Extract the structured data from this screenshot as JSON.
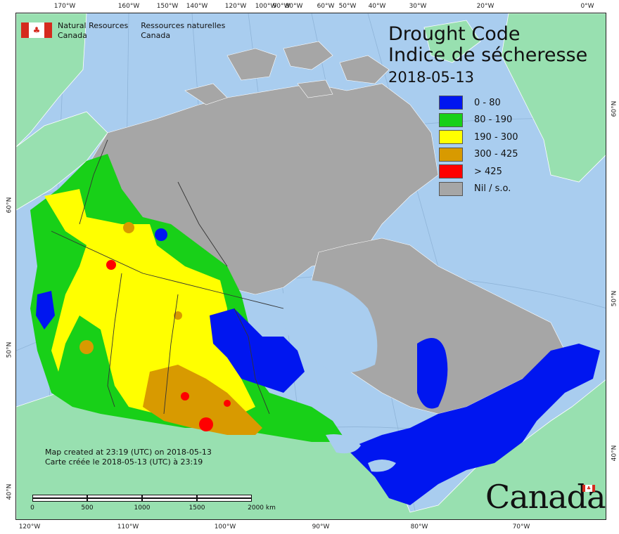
{
  "map": {
    "title_en": "Drought Code",
    "title_fr": "Indice de sécheresse",
    "date": "2018-05-13",
    "legend": [
      {
        "label": "0 - 80",
        "color": "#0016f0"
      },
      {
        "label": "80 - 190",
        "color": "#18d018"
      },
      {
        "label": "190 - 300",
        "color": "#ffff00"
      },
      {
        "label": "300 - 425",
        "color": "#d89a00"
      },
      {
        "label": "> 425",
        "color": "#ff0000"
      },
      {
        "label": "Nil / s.o.",
        "color": "#a6a6a6"
      }
    ],
    "agency_en": [
      "Natural Resources",
      "Canada"
    ],
    "agency_fr": [
      "Ressources naturelles",
      "Canada"
    ],
    "created_en": "Map created at 23:19 (UTC) on 2018-05-13",
    "created_fr": "Carte créée le 2018-05-13 (UTC) à 23:19",
    "wordmark": "Canada",
    "scale_labels": [
      "0",
      "500",
      "1000",
      "1500",
      "2000  km"
    ],
    "top_ticks": [
      "170°W",
      "160°W",
      "150°W",
      "140°W",
      "120°W",
      "100°W",
      "90°W",
      "80°W",
      "60°W",
      "50°W",
      "40°W",
      "30°W",
      "20°W",
      "0°W"
    ],
    "bottom_ticks": [
      "120°W",
      "110°W",
      "100°W",
      "90°W",
      "80°W",
      "70°W"
    ],
    "left_ticks": [
      "60°N",
      "50°N",
      "40°N"
    ],
    "right_ticks": [
      "60°N",
      "50°N",
      "40°N"
    ],
    "colors": {
      "ocean": "#a9cdef",
      "land_other": "#98e0b0",
      "nil": "#a6a6a6",
      "border": "#333333"
    }
  }
}
